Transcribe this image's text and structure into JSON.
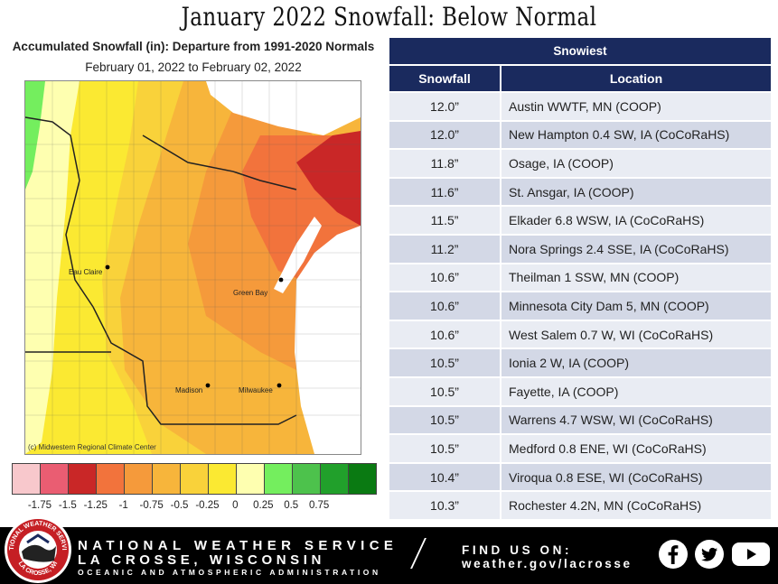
{
  "title": "January 2022 Snowfall:  Below Normal",
  "map": {
    "heading": "Accumulated Snowfall (in): Departure from 1991-2020 Normals",
    "date_range": "February 01, 2022 to February 02, 2022",
    "credit": "(c) Midwestern Regional Climate Center",
    "cities": {
      "eau_claire": "Eau Claire",
      "green_bay": "Green Bay",
      "madison": "Madison",
      "milwaukee": "Milwaukee"
    },
    "scale_colors": [
      "#f8c8cc",
      "#ea5d72",
      "#c92727",
      "#f2733c",
      "#f59a3b",
      "#f7b53b",
      "#f9d23a",
      "#fbe932",
      "#feffb0",
      "#74ee5e",
      "#4dc24c",
      "#21a02b",
      "#0a7a12"
    ],
    "scale_labels": [
      "-1.75",
      "-1.5",
      "-1.25",
      "-1",
      "-0.75",
      "-0.5",
      "-0.25",
      "0",
      "0.25",
      "0.5",
      "0.75"
    ]
  },
  "table": {
    "caption": "Snowiest",
    "col_snowfall": "Snowfall",
    "col_location": "Location",
    "rows": [
      {
        "snowfall": "12.0”",
        "location": "Austin WWTF, MN (COOP)"
      },
      {
        "snowfall": "12.0”",
        "location": "New Hampton 0.4 SW, IA (CoCoRaHS)"
      },
      {
        "snowfall": "11.8”",
        "location": "Osage, IA (COOP)"
      },
      {
        "snowfall": "11.6”",
        "location": "St.  Ansgar, IA (COOP)"
      },
      {
        "snowfall": "11.5”",
        "location": "Elkader 6.8 WSW, IA (CoCoRaHS)"
      },
      {
        "snowfall": "11.2”",
        "location": "Nora Springs 2.4 SSE, IA  (CoCoRaHS)"
      },
      {
        "snowfall": "10.6”",
        "location": "Theilman 1 SSW, MN (COOP)"
      },
      {
        "snowfall": "10.6”",
        "location": "Minnesota City Dam 5, MN (COOP)"
      },
      {
        "snowfall": "10.6”",
        "location": "West Salem 0.7 W, WI (CoCoRaHS)"
      },
      {
        "snowfall": "10.5”",
        "location": "Ionia 2 W, IA (COOP)"
      },
      {
        "snowfall": "10.5”",
        "location": "Fayette, IA (COOP)"
      },
      {
        "snowfall": "10.5”",
        "location": "Warrens 4.7 WSW, WI (CoCoRaHS)"
      },
      {
        "snowfall": "10.5”",
        "location": "Medford 0.8 ENE, WI (CoCoRaHS)"
      },
      {
        "snowfall": "10.4”",
        "location": "Viroqua 0.8 ESE, WI (CoCoRaHS)"
      },
      {
        "snowfall": "10.3”",
        "location": "Rochester 4.2N, MN (CoCoRaHS)"
      }
    ]
  },
  "footer": {
    "seal_text_top": "NATIONAL WEATHER SERVICE",
    "seal_text_bottom": "LA CROSSE, WI",
    "line1": "NATIONAL WEATHER SERVICE",
    "line2": "LA CROSSE, WISCONSIN",
    "line3": "OCEANIC AND ATMOSPHERIC ADMINISTRATION",
    "find_us": "FIND US ON:",
    "url": "weather.gov/lacrosse",
    "icons": [
      "facebook-icon",
      "twitter-icon",
      "youtube-icon"
    ]
  }
}
